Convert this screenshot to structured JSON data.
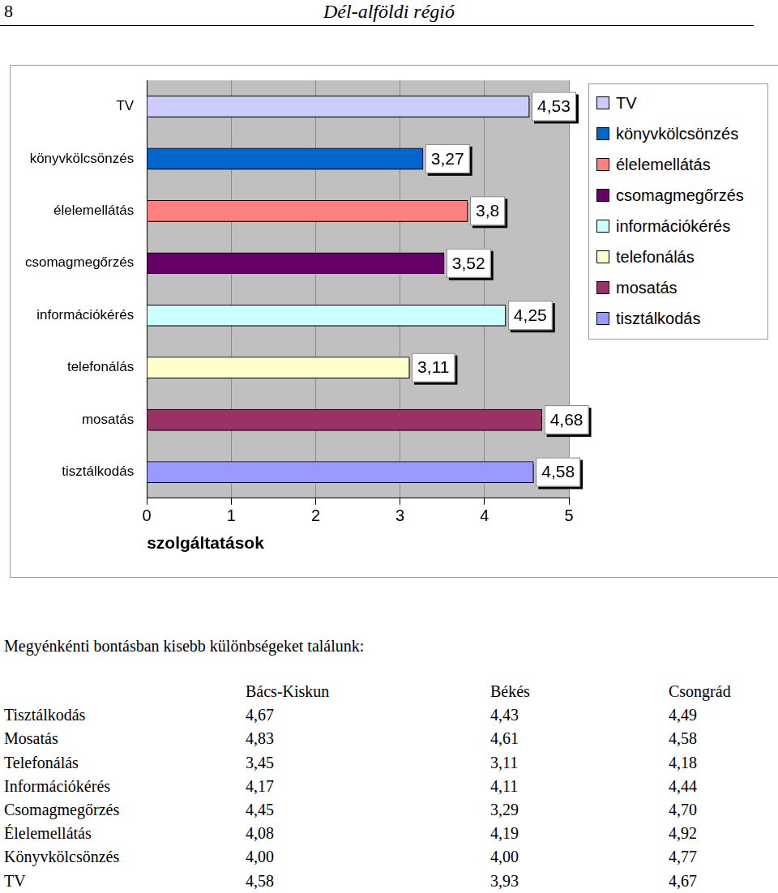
{
  "header": {
    "page_number": "8",
    "title": "Dél-alföldi régió"
  },
  "chart_data": {
    "type": "bar",
    "orientation": "horizontal",
    "categories": [
      "TV",
      "könyvkölcsönzés",
      "élelemellátás",
      "csomagmegőrzés",
      "információkérés",
      "telefonálás",
      "mosatás",
      "tisztálkodás"
    ],
    "values": [
      4.53,
      3.27,
      3.8,
      3.52,
      4.25,
      3.11,
      4.68,
      4.58
    ],
    "value_labels": [
      "4,53",
      "3,27",
      "3,8",
      "3,52",
      "4,25",
      "3,11",
      "4,68",
      "4,58"
    ],
    "colors": [
      "#ccccff",
      "#0066cc",
      "#ff8080",
      "#660066",
      "#ccffff",
      "#ffffcc",
      "#993366",
      "#9999ff"
    ],
    "x_label": "szolgáltatások",
    "xlim": [
      0,
      5
    ],
    "xticks": [
      0,
      1,
      2,
      3,
      4,
      5
    ],
    "grid": true,
    "legend": "right",
    "data_labels": true
  },
  "paragraph": "Megyénkénti bontásban kisebb különbségeket találunk:",
  "table": {
    "columns": [
      "Bács-Kiskun",
      "Békés",
      "Csongrád"
    ],
    "rows": [
      [
        "Tisztálkodás",
        "4,67",
        "4,43",
        "4,49"
      ],
      [
        "Mosatás",
        "4,83",
        "4,61",
        "4,58"
      ],
      [
        "Telefonálás",
        "3,45",
        "3,11",
        "4,18"
      ],
      [
        "Információkérés",
        "4,17",
        "4,11",
        "4,44"
      ],
      [
        "Csomagmegőrzés",
        "4,45",
        "3,29",
        "4,70"
      ],
      [
        "Élelemellátás",
        "4,08",
        "4,19",
        "4,92"
      ],
      [
        "Könyvkölcsönzés",
        "4,00",
        "4,00",
        "4,77"
      ],
      [
        "TV",
        "4,58",
        "3,93",
        "4,67"
      ]
    ]
  }
}
